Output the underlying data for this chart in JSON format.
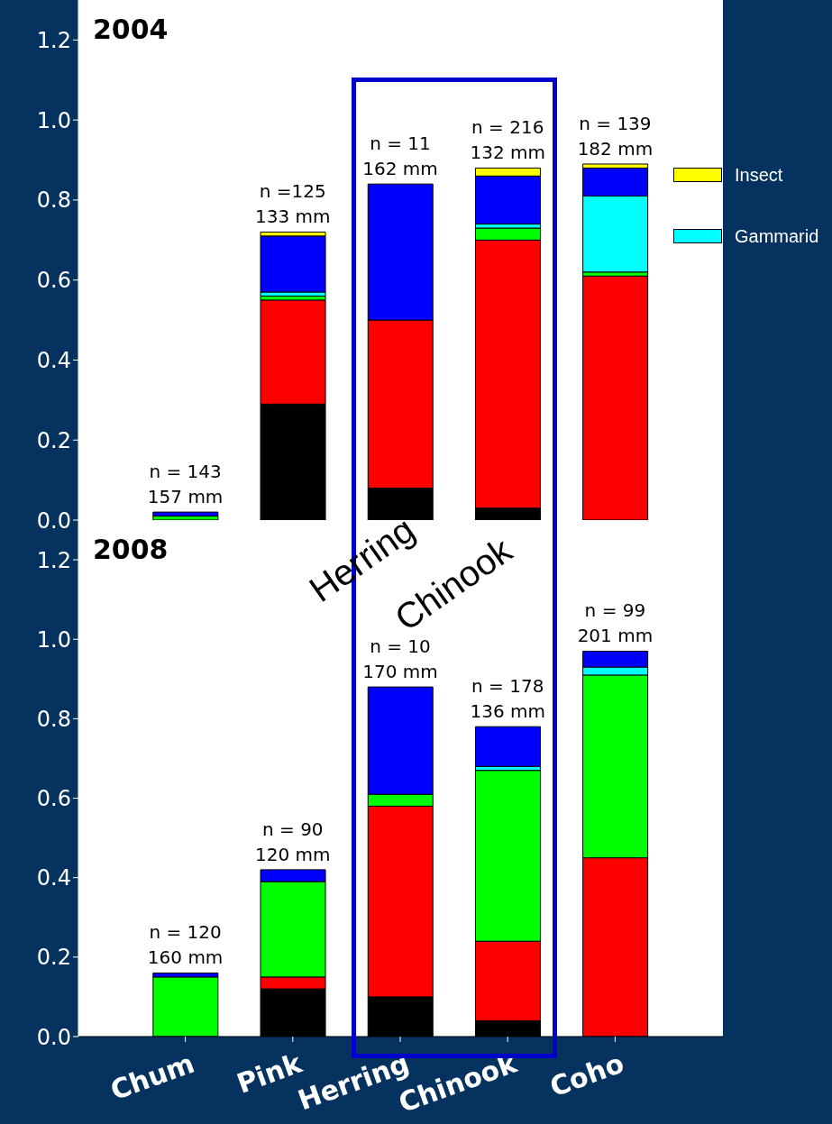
{
  "chart_data": [
    {
      "type": "bar",
      "title": "2004",
      "stacked": true,
      "categories": [
        "Chum",
        "Pink",
        "Herring",
        "Chinook",
        "Coho"
      ],
      "ylim": [
        0,
        1.3
      ],
      "yticks": [
        {
          "value": 0,
          "label": "0.0"
        },
        {
          "value": 0.2,
          "label": "0.2"
        },
        {
          "value": 0.4,
          "label": "0.4"
        },
        {
          "value": 0.6,
          "label": "0.6"
        },
        {
          "value": 0.8,
          "label": "0.8"
        },
        {
          "value": 1,
          "label": "1.0"
        },
        {
          "value": 1.2,
          "label": "1.2"
        }
      ],
      "tick_labels": "y",
      "legend": "right",
      "series": [
        {
          "color": "#000000",
          "values": [
            0,
            0.29,
            0.08,
            0.03,
            0
          ]
        },
        {
          "color": "#ff0000",
          "values": [
            0,
            0.26,
            0.42,
            0.67,
            0.61
          ]
        },
        {
          "color": "#00ff00",
          "values": [
            0.01,
            0.01,
            0,
            0.03,
            0.01
          ]
        },
        {
          "name": "Gammarid",
          "color": "#00ffff",
          "values": [
            0,
            0.01,
            0,
            0.01,
            0.19
          ]
        },
        {
          "color": "#0000ff",
          "values": [
            0.01,
            0.14,
            0.34,
            0.12,
            0.07
          ]
        },
        {
          "name": "Insect",
          "color": "#ffff00",
          "values": [
            0,
            0.01,
            0,
            0.02,
            0.01
          ]
        }
      ],
      "annotations": [
        {
          "text": "n = 143\n157 mm",
          "x": "Chum",
          "y": 0.02
        },
        {
          "text": "n =125\n133 mm",
          "x": "Pink",
          "y": 0.72
        },
        {
          "text": "n = 11\n162 mm",
          "x": "Herring",
          "y": 0.84
        },
        {
          "text": "n = 216\n132 mm",
          "x": "Chinook",
          "y": 0.88
        },
        {
          "text": "n = 139\n182 mm",
          "x": "Coho",
          "y": 0.89
        }
      ]
    },
    {
      "type": "bar",
      "title": "2008",
      "stacked": true,
      "categories": [
        "Chum",
        "Pink",
        "Herring",
        "Chinook",
        "Coho"
      ],
      "ylim": [
        0,
        1.3
      ],
      "yticks": [
        {
          "value": 0,
          "label": "0.0"
        },
        {
          "value": 0.2,
          "label": "0.2"
        },
        {
          "value": 0.4,
          "label": "0.4"
        },
        {
          "value": 0.6,
          "label": "0.6"
        },
        {
          "value": 0.8,
          "label": "0.8"
        },
        {
          "value": 1,
          "label": "1.0"
        },
        {
          "value": 1.2,
          "label": "1.2"
        }
      ],
      "series": [
        {
          "color": "#000000",
          "values": [
            0,
            0.12,
            0.1,
            0.04,
            0
          ]
        },
        {
          "color": "#ff0000",
          "values": [
            0,
            0.03,
            0.48,
            0.2,
            0.45
          ]
        },
        {
          "color": "#00ff00",
          "values": [
            0.15,
            0.24,
            0.03,
            0.43,
            0.46
          ]
        },
        {
          "color": "#00ffff",
          "values": [
            0,
            0,
            0,
            0.01,
            0.02
          ]
        },
        {
          "color": "#0000ff",
          "values": [
            0.01,
            0.03,
            0.27,
            0.1,
            0.04
          ]
        },
        {
          "color": "#ffff00",
          "values": [
            0,
            0,
            0,
            0,
            0
          ]
        }
      ],
      "annotations": [
        {
          "text": "n = 120\n160 mm",
          "x": "Chum",
          "y": 0.16
        },
        {
          "text": "n = 90\n120 mm",
          "x": "Pink",
          "y": 0.42
        },
        {
          "text": "n = 10\n170 mm",
          "x": "Herring",
          "y": 0.88
        },
        {
          "text": "n = 178\n136 mm",
          "x": "Chinook",
          "y": 0.78
        },
        {
          "text": "n = 99\n201 mm",
          "x": "Coho",
          "y": 0.97
        },
        "Herring",
        "Chinook"
      ]
    }
  ]
}
